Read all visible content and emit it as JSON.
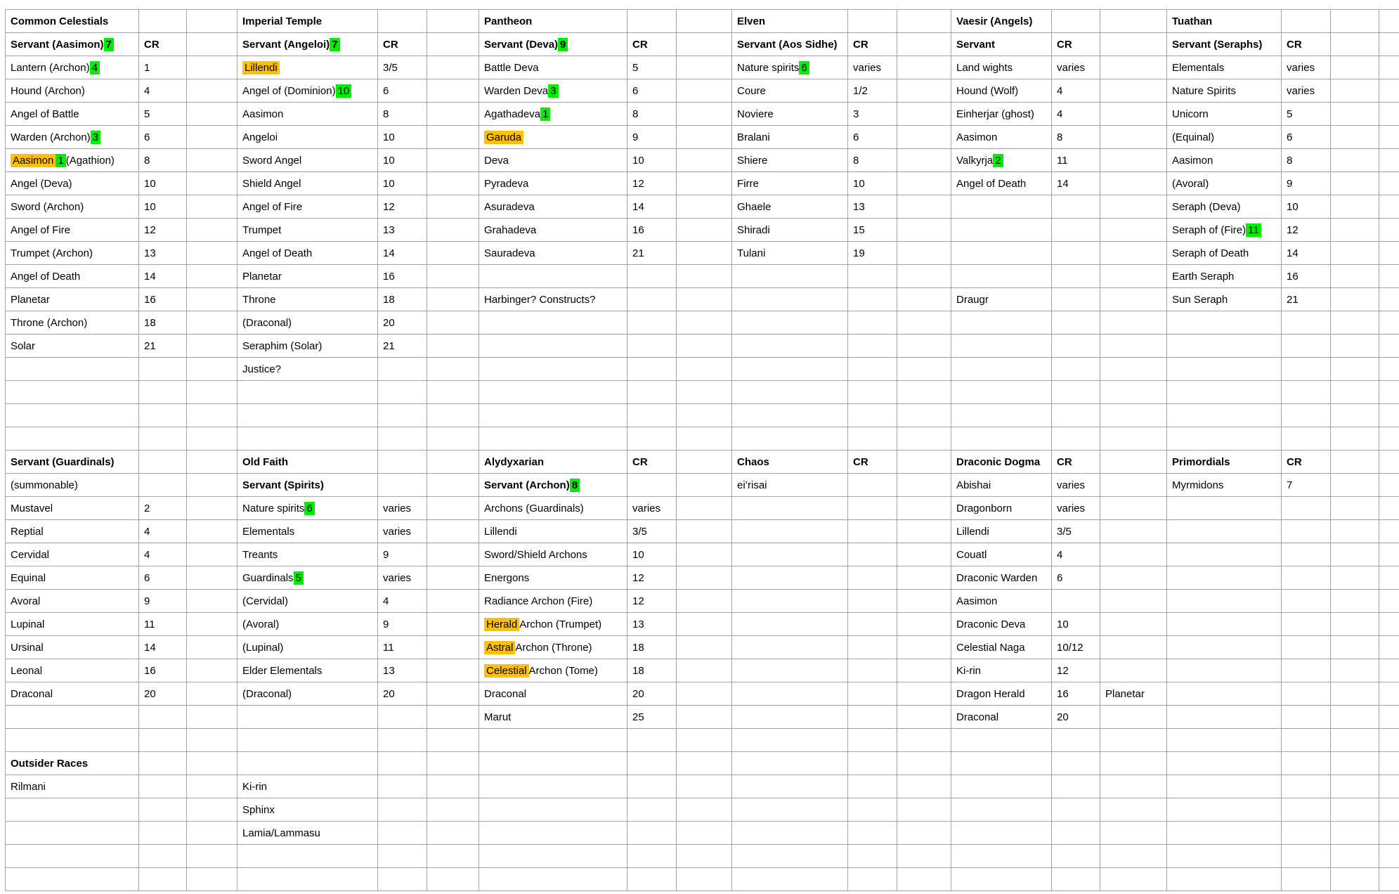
{
  "colors": {
    "grid_line": "#a3a3a3",
    "highlight_green": "#00ee00",
    "highlight_orange": "#ffc000",
    "text": "#000000",
    "background": "#ffffff"
  },
  "cells": [
    {
      "r": 0,
      "c": "n1",
      "t": "Common Celestials",
      "b": true
    },
    {
      "r": 0,
      "c": "n2",
      "t": "Imperial Temple",
      "b": true
    },
    {
      "r": 0,
      "c": "n3",
      "t": "Pantheon",
      "b": true
    },
    {
      "r": 0,
      "c": "n4",
      "t": "Elven",
      "b": true
    },
    {
      "r": 0,
      "c": "n5",
      "t": "Vaesir (Angels)",
      "b": true
    },
    {
      "r": 0,
      "c": "n6",
      "t": "Tuathan",
      "b": true
    },
    {
      "r": 1,
      "c": "n1",
      "s": [
        [
          "Servant (Aasimon) "
        ],
        [
          "7",
          "green"
        ]
      ],
      "b": true
    },
    {
      "r": 1,
      "c": "cr1",
      "t": "CR",
      "b": true
    },
    {
      "r": 1,
      "c": "n2",
      "s": [
        [
          "Servant (Angeloi) "
        ],
        [
          "7",
          "green"
        ]
      ],
      "b": true
    },
    {
      "r": 1,
      "c": "cr2",
      "t": "CR",
      "b": true
    },
    {
      "r": 1,
      "c": "n3",
      "s": [
        [
          "Servant (Deva) "
        ],
        [
          "9",
          "green"
        ]
      ],
      "b": true
    },
    {
      "r": 1,
      "c": "cr3",
      "t": "CR",
      "b": true
    },
    {
      "r": 1,
      "c": "n4",
      "t": "Servant (Aos Sidhe)",
      "b": true
    },
    {
      "r": 1,
      "c": "cr4",
      "t": "CR",
      "b": true
    },
    {
      "r": 1,
      "c": "n5",
      "t": "Servant",
      "b": true
    },
    {
      "r": 1,
      "c": "cr5",
      "t": "CR",
      "b": true
    },
    {
      "r": 1,
      "c": "n6",
      "t": "Servant (Seraphs)",
      "b": true
    },
    {
      "r": 1,
      "c": "cr6",
      "t": "CR",
      "b": true
    },
    {
      "r": 2,
      "c": "n1",
      "s": [
        [
          "Lantern (Archon) "
        ],
        [
          "4",
          "green"
        ]
      ]
    },
    {
      "r": 2,
      "c": "cr1",
      "t": "1"
    },
    {
      "r": 2,
      "c": "n2",
      "s": [
        [
          "Lillendi",
          "orange"
        ]
      ]
    },
    {
      "r": 2,
      "c": "cr2",
      "t": "3/5"
    },
    {
      "r": 2,
      "c": "n3",
      "t": "Battle Deva"
    },
    {
      "r": 2,
      "c": "cr3",
      "t": "5"
    },
    {
      "r": 2,
      "c": "n4",
      "s": [
        [
          "Nature spirits "
        ],
        [
          "6",
          "green"
        ]
      ]
    },
    {
      "r": 2,
      "c": "cr4",
      "t": "varies"
    },
    {
      "r": 2,
      "c": "n5",
      "t": "Land wights"
    },
    {
      "r": 2,
      "c": "cr5",
      "t": "varies"
    },
    {
      "r": 2,
      "c": "n6",
      "t": "Elementals"
    },
    {
      "r": 2,
      "c": "cr6",
      "t": "varies"
    },
    {
      "r": 3,
      "c": "n1",
      "t": "Hound (Archon)"
    },
    {
      "r": 3,
      "c": "cr1",
      "t": "4"
    },
    {
      "r": 3,
      "c": "n2",
      "s": [
        [
          "Angel of (Dominion) "
        ],
        [
          "10",
          "green"
        ]
      ]
    },
    {
      "r": 3,
      "c": "cr2",
      "t": "6"
    },
    {
      "r": 3,
      "c": "n3",
      "s": [
        [
          "Warden Deva "
        ],
        [
          "3",
          "green"
        ]
      ]
    },
    {
      "r": 3,
      "c": "cr3",
      "t": "6"
    },
    {
      "r": 3,
      "c": "n4",
      "t": "Coure"
    },
    {
      "r": 3,
      "c": "cr4",
      "t": "1/2"
    },
    {
      "r": 3,
      "c": "n5",
      "t": "Hound (Wolf)"
    },
    {
      "r": 3,
      "c": "cr5",
      "t": "4"
    },
    {
      "r": 3,
      "c": "n6",
      "t": "Nature Spirits"
    },
    {
      "r": 3,
      "c": "cr6",
      "t": "varies"
    },
    {
      "r": 4,
      "c": "n1",
      "t": "Angel of Battle"
    },
    {
      "r": 4,
      "c": "cr1",
      "t": "5"
    },
    {
      "r": 4,
      "c": "n2",
      "t": "Aasimon"
    },
    {
      "r": 4,
      "c": "cr2",
      "t": "8"
    },
    {
      "r": 4,
      "c": "n3",
      "s": [
        [
          "Agathadeva "
        ],
        [
          "1",
          "green"
        ]
      ]
    },
    {
      "r": 4,
      "c": "cr3",
      "t": "8"
    },
    {
      "r": 4,
      "c": "n4",
      "t": "Noviere"
    },
    {
      "r": 4,
      "c": "cr4",
      "t": "3"
    },
    {
      "r": 4,
      "c": "n5",
      "t": "Einherjar (ghost)"
    },
    {
      "r": 4,
      "c": "cr5",
      "t": "4"
    },
    {
      "r": 4,
      "c": "n6",
      "t": "Unicorn"
    },
    {
      "r": 4,
      "c": "cr6",
      "t": "5"
    },
    {
      "r": 5,
      "c": "n1",
      "s": [
        [
          "Warden (Archon) "
        ],
        [
          "3",
          "green"
        ]
      ]
    },
    {
      "r": 5,
      "c": "cr1",
      "t": "6"
    },
    {
      "r": 5,
      "c": "n2",
      "t": "Angeloi"
    },
    {
      "r": 5,
      "c": "cr2",
      "t": "10"
    },
    {
      "r": 5,
      "c": "n3",
      "s": [
        [
          "Garuda",
          "orange"
        ]
      ]
    },
    {
      "r": 5,
      "c": "cr3",
      "t": "9"
    },
    {
      "r": 5,
      "c": "n4",
      "t": "Bralani"
    },
    {
      "r": 5,
      "c": "cr4",
      "t": "6"
    },
    {
      "r": 5,
      "c": "n5",
      "t": "Aasimon"
    },
    {
      "r": 5,
      "c": "cr5",
      "t": "8"
    },
    {
      "r": 5,
      "c": "n6",
      "t": "(Equinal)"
    },
    {
      "r": 5,
      "c": "cr6",
      "t": "6"
    },
    {
      "r": 6,
      "c": "n1",
      "s": [
        [
          "Aasimon",
          "orange"
        ],
        [
          " "
        ],
        [
          "1",
          "green"
        ],
        [
          " (Agathion)"
        ]
      ]
    },
    {
      "r": 6,
      "c": "cr1",
      "t": "8"
    },
    {
      "r": 6,
      "c": "n2",
      "t": "Sword Angel"
    },
    {
      "r": 6,
      "c": "cr2",
      "t": "10"
    },
    {
      "r": 6,
      "c": "n3",
      "t": "Deva"
    },
    {
      "r": 6,
      "c": "cr3",
      "t": "10"
    },
    {
      "r": 6,
      "c": "n4",
      "t": "Shiere"
    },
    {
      "r": 6,
      "c": "cr4",
      "t": "8"
    },
    {
      "r": 6,
      "c": "n5",
      "s": [
        [
          "Valkyrja "
        ],
        [
          "2",
          "green"
        ]
      ]
    },
    {
      "r": 6,
      "c": "cr5",
      "t": "11"
    },
    {
      "r": 6,
      "c": "n6",
      "t": "Aasimon"
    },
    {
      "r": 6,
      "c": "cr6",
      "t": "8"
    },
    {
      "r": 7,
      "c": "n1",
      "t": "Angel (Deva)"
    },
    {
      "r": 7,
      "c": "cr1",
      "t": "10"
    },
    {
      "r": 7,
      "c": "n2",
      "t": "Shield Angel"
    },
    {
      "r": 7,
      "c": "cr2",
      "t": "10"
    },
    {
      "r": 7,
      "c": "n3",
      "t": "Pyradeva"
    },
    {
      "r": 7,
      "c": "cr3",
      "t": "12"
    },
    {
      "r": 7,
      "c": "n4",
      "t": "Firre"
    },
    {
      "r": 7,
      "c": "cr4",
      "t": "10"
    },
    {
      "r": 7,
      "c": "n5",
      "t": "Angel of Death"
    },
    {
      "r": 7,
      "c": "cr5",
      "t": "14"
    },
    {
      "r": 7,
      "c": "n6",
      "t": "(Avoral)"
    },
    {
      "r": 7,
      "c": "cr6",
      "t": "9"
    },
    {
      "r": 8,
      "c": "n1",
      "t": "Sword (Archon)"
    },
    {
      "r": 8,
      "c": "cr1",
      "t": "10"
    },
    {
      "r": 8,
      "c": "n2",
      "t": "Angel of Fire"
    },
    {
      "r": 8,
      "c": "cr2",
      "t": "12"
    },
    {
      "r": 8,
      "c": "n3",
      "t": "Asuradeva"
    },
    {
      "r": 8,
      "c": "cr3",
      "t": "14"
    },
    {
      "r": 8,
      "c": "n4",
      "t": "Ghaele"
    },
    {
      "r": 8,
      "c": "cr4",
      "t": "13"
    },
    {
      "r": 8,
      "c": "n6",
      "t": "Seraph (Deva)"
    },
    {
      "r": 8,
      "c": "cr6",
      "t": "10"
    },
    {
      "r": 9,
      "c": "n1",
      "t": "Angel of Fire"
    },
    {
      "r": 9,
      "c": "cr1",
      "t": "12"
    },
    {
      "r": 9,
      "c": "n2",
      "t": "Trumpet"
    },
    {
      "r": 9,
      "c": "cr2",
      "t": "13"
    },
    {
      "r": 9,
      "c": "n3",
      "t": "Grahadeva"
    },
    {
      "r": 9,
      "c": "cr3",
      "t": "16"
    },
    {
      "r": 9,
      "c": "n4",
      "t": "Shiradi"
    },
    {
      "r": 9,
      "c": "cr4",
      "t": "15"
    },
    {
      "r": 9,
      "c": "n6",
      "s": [
        [
          "Seraph of (Fire) "
        ],
        [
          "11",
          "green"
        ]
      ]
    },
    {
      "r": 9,
      "c": "cr6",
      "t": "12"
    },
    {
      "r": 10,
      "c": "n1",
      "t": "Trumpet (Archon)"
    },
    {
      "r": 10,
      "c": "cr1",
      "t": "13"
    },
    {
      "r": 10,
      "c": "n2",
      "t": "Angel of Death"
    },
    {
      "r": 10,
      "c": "cr2",
      "t": "14"
    },
    {
      "r": 10,
      "c": "n3",
      "t": "Sauradeva"
    },
    {
      "r": 10,
      "c": "cr3",
      "t": "21"
    },
    {
      "r": 10,
      "c": "n4",
      "t": "Tulani"
    },
    {
      "r": 10,
      "c": "cr4",
      "t": "19"
    },
    {
      "r": 10,
      "c": "n6",
      "t": "Seraph of Death"
    },
    {
      "r": 10,
      "c": "cr6",
      "t": "14"
    },
    {
      "r": 11,
      "c": "n1",
      "t": "Angel of Death"
    },
    {
      "r": 11,
      "c": "cr1",
      "t": "14"
    },
    {
      "r": 11,
      "c": "n2",
      "t": "Planetar"
    },
    {
      "r": 11,
      "c": "cr2",
      "t": "16"
    },
    {
      "r": 11,
      "c": "n6",
      "t": "Earth Seraph"
    },
    {
      "r": 11,
      "c": "cr6",
      "t": "16"
    },
    {
      "r": 12,
      "c": "n1",
      "t": "Planetar"
    },
    {
      "r": 12,
      "c": "cr1",
      "t": "16"
    },
    {
      "r": 12,
      "c": "n2",
      "t": "Throne"
    },
    {
      "r": 12,
      "c": "cr2",
      "t": "18"
    },
    {
      "r": 12,
      "c": "n3",
      "t": "Harbinger? Constructs?"
    },
    {
      "r": 12,
      "c": "n5",
      "t": "Draugr"
    },
    {
      "r": 12,
      "c": "n6",
      "t": "Sun Seraph"
    },
    {
      "r": 12,
      "c": "cr6",
      "t": "21"
    },
    {
      "r": 13,
      "c": "n1",
      "t": "Throne (Archon)"
    },
    {
      "r": 13,
      "c": "cr1",
      "t": "18"
    },
    {
      "r": 13,
      "c": "n2",
      "t": "(Draconal)"
    },
    {
      "r": 13,
      "c": "cr2",
      "t": "20"
    },
    {
      "r": 14,
      "c": "n1",
      "t": "Solar"
    },
    {
      "r": 14,
      "c": "cr1",
      "t": "21"
    },
    {
      "r": 14,
      "c": "n2",
      "t": "Seraphim (Solar)"
    },
    {
      "r": 14,
      "c": "cr2",
      "t": "21"
    },
    {
      "r": 15,
      "c": "n2",
      "t": "Justice?"
    },
    {
      "r": 19,
      "c": "n1",
      "t": "Servant (Guardinals)",
      "b": true
    },
    {
      "r": 19,
      "c": "n2",
      "t": "Old Faith",
      "b": true
    },
    {
      "r": 19,
      "c": "n3",
      "t": "Alydyxarian",
      "b": true
    },
    {
      "r": 19,
      "c": "cr3",
      "t": "CR",
      "b": true
    },
    {
      "r": 19,
      "c": "n4",
      "t": "Chaos",
      "b": true
    },
    {
      "r": 19,
      "c": "cr4",
      "t": "CR",
      "b": true
    },
    {
      "r": 19,
      "c": "n5",
      "t": "Draconic Dogma",
      "b": true
    },
    {
      "r": 19,
      "c": "cr5",
      "t": "CR",
      "b": true
    },
    {
      "r": 19,
      "c": "n6",
      "t": "Primordials",
      "b": true
    },
    {
      "r": 19,
      "c": "cr6",
      "t": "CR",
      "b": true
    },
    {
      "r": 20,
      "c": "n1",
      "t": "(summonable)"
    },
    {
      "r": 20,
      "c": "n2",
      "t": "Servant (Spirits)",
      "b": true
    },
    {
      "r": 20,
      "c": "n3",
      "s": [
        [
          "Servant (Archon) "
        ],
        [
          "8",
          "green"
        ]
      ],
      "b": true
    },
    {
      "r": 20,
      "c": "n4",
      "t": "ei’risai"
    },
    {
      "r": 20,
      "c": "n5",
      "t": "Abishai"
    },
    {
      "r": 20,
      "c": "cr5",
      "t": "varies"
    },
    {
      "r": 20,
      "c": "n6",
      "t": "Myrmidons"
    },
    {
      "r": 20,
      "c": "cr6",
      "t": "7"
    },
    {
      "r": 21,
      "c": "n1",
      "t": "Mustavel"
    },
    {
      "r": 21,
      "c": "cr1",
      "t": "2"
    },
    {
      "r": 21,
      "c": "n2",
      "s": [
        [
          "Nature spirits "
        ],
        [
          "6",
          "green"
        ]
      ]
    },
    {
      "r": 21,
      "c": "cr2",
      "t": "varies"
    },
    {
      "r": 21,
      "c": "n3",
      "t": "Archons (Guardinals)"
    },
    {
      "r": 21,
      "c": "cr3",
      "t": "varies"
    },
    {
      "r": 21,
      "c": "n5",
      "t": "Dragonborn"
    },
    {
      "r": 21,
      "c": "cr5",
      "t": "varies"
    },
    {
      "r": 22,
      "c": "n1",
      "t": "Reptial"
    },
    {
      "r": 22,
      "c": "cr1",
      "t": "4"
    },
    {
      "r": 22,
      "c": "n2",
      "t": "Elementals"
    },
    {
      "r": 22,
      "c": "cr2",
      "t": "varies"
    },
    {
      "r": 22,
      "c": "n3",
      "t": "Lillendi"
    },
    {
      "r": 22,
      "c": "cr3",
      "t": "3/5"
    },
    {
      "r": 22,
      "c": "n5",
      "t": "Lillendi"
    },
    {
      "r": 22,
      "c": "cr5",
      "t": "3/5"
    },
    {
      "r": 23,
      "c": "n1",
      "t": "Cervidal"
    },
    {
      "r": 23,
      "c": "cr1",
      "t": "4"
    },
    {
      "r": 23,
      "c": "n2",
      "t": "Treants"
    },
    {
      "r": 23,
      "c": "cr2",
      "t": "9"
    },
    {
      "r": 23,
      "c": "n3",
      "t": "Sword/Shield Archons"
    },
    {
      "r": 23,
      "c": "cr3",
      "t": "10"
    },
    {
      "r": 23,
      "c": "n5",
      "t": "Couatl"
    },
    {
      "r": 23,
      "c": "cr5",
      "t": "4"
    },
    {
      "r": 24,
      "c": "n1",
      "t": "Equinal"
    },
    {
      "r": 24,
      "c": "cr1",
      "t": "6"
    },
    {
      "r": 24,
      "c": "n2",
      "s": [
        [
          "Guardinals "
        ],
        [
          "5",
          "green"
        ]
      ]
    },
    {
      "r": 24,
      "c": "cr2",
      "t": "varies"
    },
    {
      "r": 24,
      "c": "n3",
      "t": "Energons"
    },
    {
      "r": 24,
      "c": "cr3",
      "t": "12"
    },
    {
      "r": 24,
      "c": "n5",
      "t": "Draconic Warden"
    },
    {
      "r": 24,
      "c": "cr5",
      "t": "6"
    },
    {
      "r": 25,
      "c": "n1",
      "t": "Avoral"
    },
    {
      "r": 25,
      "c": "cr1",
      "t": "9"
    },
    {
      "r": 25,
      "c": "n2",
      "t": "(Cervidal)"
    },
    {
      "r": 25,
      "c": "cr2",
      "t": "4"
    },
    {
      "r": 25,
      "c": "n3",
      "t": "Radiance Archon (Fire)"
    },
    {
      "r": 25,
      "c": "cr3",
      "t": "12"
    },
    {
      "r": 25,
      "c": "n5",
      "t": "Aasimon"
    },
    {
      "r": 26,
      "c": "n1",
      "t": "Lupinal"
    },
    {
      "r": 26,
      "c": "cr1",
      "t": "11"
    },
    {
      "r": 26,
      "c": "n2",
      "t": "(Avoral)"
    },
    {
      "r": 26,
      "c": "cr2",
      "t": "9"
    },
    {
      "r": 26,
      "c": "n3",
      "s": [
        [
          "Herald",
          "orange"
        ],
        [
          " Archon (Trumpet)"
        ]
      ]
    },
    {
      "r": 26,
      "c": "cr3",
      "t": "13"
    },
    {
      "r": 26,
      "c": "n5",
      "t": "Draconic Deva"
    },
    {
      "r": 26,
      "c": "cr5",
      "t": "10"
    },
    {
      "r": 27,
      "c": "n1",
      "t": "Ursinal"
    },
    {
      "r": 27,
      "c": "cr1",
      "t": "14"
    },
    {
      "r": 27,
      "c": "n2",
      "t": "(Lupinal)"
    },
    {
      "r": 27,
      "c": "cr2",
      "t": "11"
    },
    {
      "r": 27,
      "c": "n3",
      "s": [
        [
          "Astral",
          "orange"
        ],
        [
          " Archon (Throne)"
        ]
      ]
    },
    {
      "r": 27,
      "c": "cr3",
      "t": "18"
    },
    {
      "r": 27,
      "c": "n5",
      "t": "Celestial Naga"
    },
    {
      "r": 27,
      "c": "cr5",
      "t": "10/12"
    },
    {
      "r": 28,
      "c": "n1",
      "t": "Leonal"
    },
    {
      "r": 28,
      "c": "cr1",
      "t": "16"
    },
    {
      "r": 28,
      "c": "n2",
      "t": "Elder Elementals"
    },
    {
      "r": 28,
      "c": "cr2",
      "t": "13"
    },
    {
      "r": 28,
      "c": "n3",
      "s": [
        [
          "Celestial",
          "orange"
        ],
        [
          " Archon (Tome)"
        ]
      ]
    },
    {
      "r": 28,
      "c": "cr3",
      "t": "18"
    },
    {
      "r": 28,
      "c": "n5",
      "t": "Ki-rin"
    },
    {
      "r": 28,
      "c": "cr5",
      "t": "12"
    },
    {
      "r": 29,
      "c": "n1",
      "t": "Draconal"
    },
    {
      "r": 29,
      "c": "cr1",
      "t": "20"
    },
    {
      "r": 29,
      "c": "n2",
      "t": "(Draconal)"
    },
    {
      "r": 29,
      "c": "cr2",
      "t": "20"
    },
    {
      "r": 29,
      "c": "n3",
      "t": "Draconal"
    },
    {
      "r": 29,
      "c": "cr3",
      "t": "20"
    },
    {
      "r": 29,
      "c": "n5",
      "t": "Dragon Herald"
    },
    {
      "r": 29,
      "c": "cr5",
      "t": "16"
    },
    {
      "r": 29,
      "c": "g5",
      "t": "Planetar"
    },
    {
      "r": 30,
      "c": "n3",
      "t": "Marut"
    },
    {
      "r": 30,
      "c": "cr3",
      "t": "25"
    },
    {
      "r": 30,
      "c": "n5",
      "t": "Draconal"
    },
    {
      "r": 30,
      "c": "cr5",
      "t": "20"
    },
    {
      "r": 32,
      "c": "n1",
      "t": "Outsider Races",
      "b": true
    },
    {
      "r": 33,
      "c": "n1",
      "t": "Rilmani"
    },
    {
      "r": 33,
      "c": "n2",
      "t": "Ki-rin"
    },
    {
      "r": 34,
      "c": "n2",
      "t": "Sphinx"
    },
    {
      "r": 35,
      "c": "n2",
      "t": "Lamia/Lammasu"
    }
  ]
}
